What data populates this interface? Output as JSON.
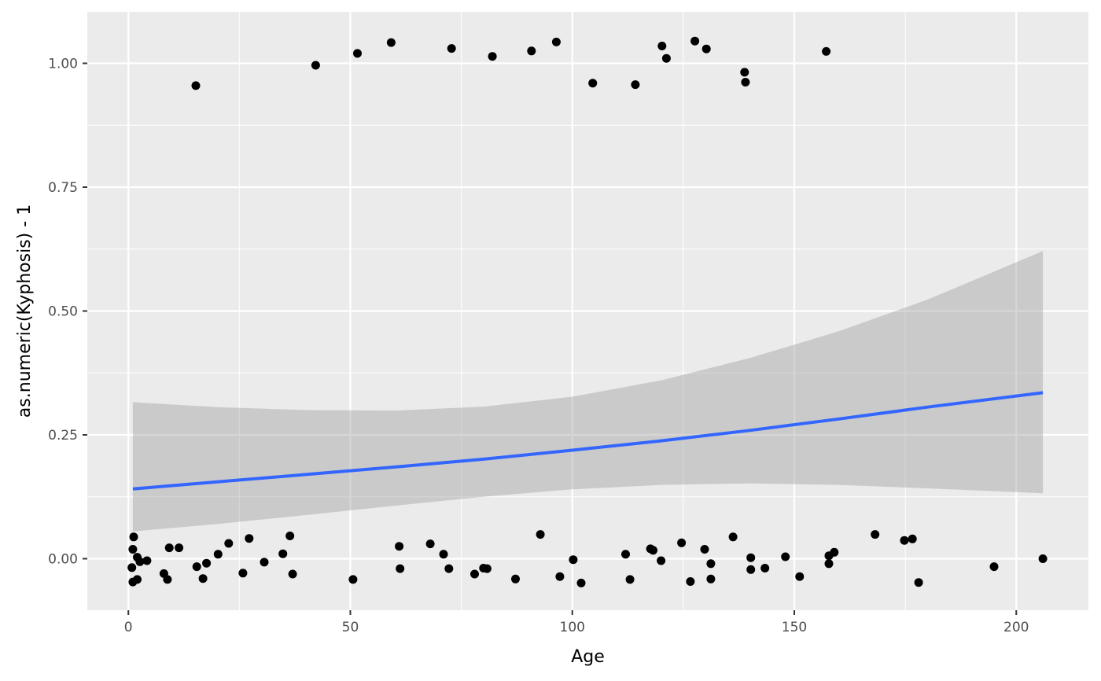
{
  "chart_data": {
    "type": "scatter",
    "xlabel": "Age",
    "ylabel": "as.numeric(Kyphosis) - 1",
    "xlim": [
      -9.25,
      216.25
    ],
    "ylim": [
      -0.104,
      1.104
    ],
    "x_ticks": [
      0,
      50,
      100,
      150,
      200
    ],
    "x_tick_labels": [
      "0",
      "50",
      "100",
      "150",
      "200"
    ],
    "y_ticks": [
      0,
      0.25,
      0.5,
      0.75,
      1.0
    ],
    "y_tick_labels": [
      "0.00",
      "0.25",
      "0.50",
      "0.75",
      "1.00"
    ],
    "grid": true,
    "panel_color": "#ebebeb",
    "grid_color": "#ffffff",
    "point_color": "#000000",
    "points": [
      {
        "x": 15.2,
        "y": 0.955
      },
      {
        "x": 42.2,
        "y": 0.996
      },
      {
        "x": 51.6,
        "y": 1.02
      },
      {
        "x": 59.2,
        "y": 1.042
      },
      {
        "x": 72.8,
        "y": 1.03
      },
      {
        "x": 82.0,
        "y": 1.014
      },
      {
        "x": 90.8,
        "y": 1.025
      },
      {
        "x": 96.4,
        "y": 1.043
      },
      {
        "x": 104.6,
        "y": 0.96
      },
      {
        "x": 114.2,
        "y": 0.957
      },
      {
        "x": 120.2,
        "y": 1.035
      },
      {
        "x": 121.2,
        "y": 1.01
      },
      {
        "x": 127.6,
        "y": 1.045
      },
      {
        "x": 130.2,
        "y": 1.029
      },
      {
        "x": 138.8,
        "y": 0.982
      },
      {
        "x": 139.0,
        "y": 0.962
      },
      {
        "x": 157.2,
        "y": 1.024
      },
      {
        "x": 1.2,
        "y": 0.044
      },
      {
        "x": 1.0,
        "y": 0.019
      },
      {
        "x": 0.8,
        "y": -0.018
      },
      {
        "x": 1.0,
        "y": -0.047
      },
      {
        "x": 2.0,
        "y": 0.003
      },
      {
        "x": 2.6,
        "y": -0.006
      },
      {
        "x": 2.0,
        "y": -0.042
      },
      {
        "x": 4.2,
        "y": -0.004
      },
      {
        "x": 8.0,
        "y": -0.03
      },
      {
        "x": 8.8,
        "y": -0.042
      },
      {
        "x": 9.2,
        "y": 0.022
      },
      {
        "x": 11.4,
        "y": 0.022
      },
      {
        "x": 15.4,
        "y": -0.016
      },
      {
        "x": 16.8,
        "y": -0.04
      },
      {
        "x": 17.6,
        "y": -0.009
      },
      {
        "x": 20.2,
        "y": 0.009
      },
      {
        "x": 22.6,
        "y": 0.031
      },
      {
        "x": 25.8,
        "y": -0.029
      },
      {
        "x": 27.2,
        "y": 0.041
      },
      {
        "x": 30.6,
        "y": -0.007
      },
      {
        "x": 34.8,
        "y": 0.01
      },
      {
        "x": 36.4,
        "y": 0.046
      },
      {
        "x": 37.0,
        "y": -0.031
      },
      {
        "x": 50.6,
        "y": -0.042
      },
      {
        "x": 61.0,
        "y": 0.025
      },
      {
        "x": 61.2,
        "y": -0.02
      },
      {
        "x": 68.0,
        "y": 0.03
      },
      {
        "x": 71.0,
        "y": 0.009
      },
      {
        "x": 72.2,
        "y": -0.02
      },
      {
        "x": 78.0,
        "y": -0.031
      },
      {
        "x": 80.0,
        "y": -0.019
      },
      {
        "x": 80.8,
        "y": -0.02
      },
      {
        "x": 87.2,
        "y": -0.041
      },
      {
        "x": 92.8,
        "y": 0.049
      },
      {
        "x": 97.2,
        "y": -0.036
      },
      {
        "x": 100.2,
        "y": -0.002
      },
      {
        "x": 102.0,
        "y": -0.049
      },
      {
        "x": 112.0,
        "y": 0.009
      },
      {
        "x": 113.0,
        "y": -0.042
      },
      {
        "x": 117.6,
        "y": 0.02
      },
      {
        "x": 118.2,
        "y": 0.017
      },
      {
        "x": 120.0,
        "y": -0.004
      },
      {
        "x": 124.6,
        "y": 0.032
      },
      {
        "x": 126.6,
        "y": -0.046
      },
      {
        "x": 129.8,
        "y": 0.019
      },
      {
        "x": 131.2,
        "y": -0.01
      },
      {
        "x": 131.2,
        "y": -0.041
      },
      {
        "x": 136.2,
        "y": 0.044
      },
      {
        "x": 140.2,
        "y": 0.002
      },
      {
        "x": 140.2,
        "y": -0.022
      },
      {
        "x": 143.4,
        "y": -0.019
      },
      {
        "x": 148.0,
        "y": 0.004
      },
      {
        "x": 151.2,
        "y": -0.036
      },
      {
        "x": 157.8,
        "y": 0.006
      },
      {
        "x": 157.8,
        "y": -0.01
      },
      {
        "x": 159.0,
        "y": 0.013
      },
      {
        "x": 168.2,
        "y": 0.049
      },
      {
        "x": 174.8,
        "y": 0.037
      },
      {
        "x": 176.6,
        "y": 0.04
      },
      {
        "x": 178.0,
        "y": -0.048
      },
      {
        "x": 195.0,
        "y": -0.016
      },
      {
        "x": 206.0,
        "y": 0.0
      }
    ],
    "smooth_color": "#3366ff",
    "smooth_line": [
      {
        "x": 1,
        "y": 0.141
      },
      {
        "x": 20,
        "y": 0.155
      },
      {
        "x": 40,
        "y": 0.17
      },
      {
        "x": 60,
        "y": 0.185
      },
      {
        "x": 80,
        "y": 0.201
      },
      {
        "x": 100,
        "y": 0.219
      },
      {
        "x": 120,
        "y": 0.238
      },
      {
        "x": 140,
        "y": 0.259
      },
      {
        "x": 160,
        "y": 0.282
      },
      {
        "x": 180,
        "y": 0.306
      },
      {
        "x": 206,
        "y": 0.335
      }
    ],
    "ribbon_color": "#999999",
    "ribbon_opacity": 0.4,
    "ribbon": [
      {
        "x": 1,
        "lo": 0.055,
        "hi": 0.316
      },
      {
        "x": 20,
        "lo": 0.07,
        "hi": 0.306
      },
      {
        "x": 40,
        "lo": 0.088,
        "hi": 0.3
      },
      {
        "x": 60,
        "lo": 0.107,
        "hi": 0.299
      },
      {
        "x": 80,
        "lo": 0.125,
        "hi": 0.307
      },
      {
        "x": 100,
        "lo": 0.14,
        "hi": 0.327
      },
      {
        "x": 120,
        "lo": 0.149,
        "hi": 0.36
      },
      {
        "x": 140,
        "lo": 0.152,
        "hi": 0.405
      },
      {
        "x": 160,
        "lo": 0.149,
        "hi": 0.459
      },
      {
        "x": 180,
        "lo": 0.142,
        "hi": 0.523
      },
      {
        "x": 206,
        "lo": 0.132,
        "hi": 0.621
      }
    ]
  }
}
